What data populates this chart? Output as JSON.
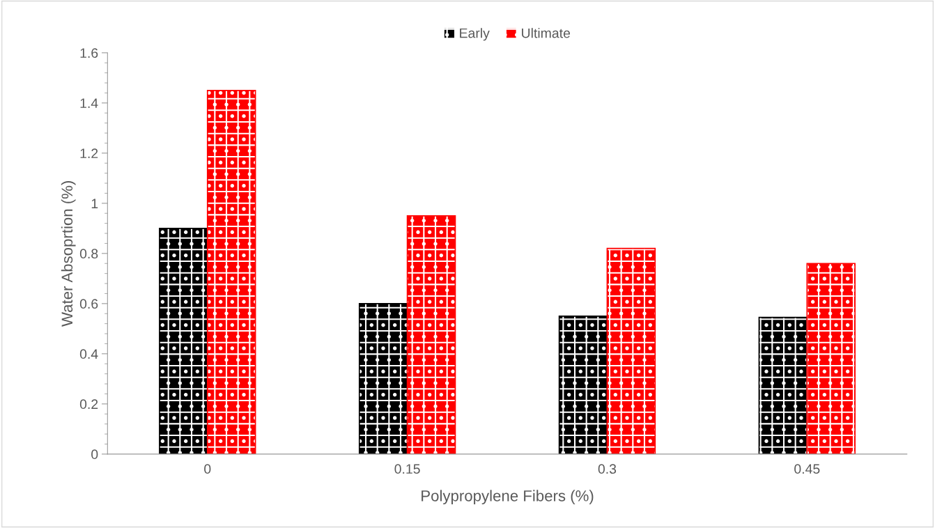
{
  "chart_data": {
    "type": "bar",
    "xlabel": "Polypropylene Fibers (%)",
    "ylabel": "Water Absoprtion (%)",
    "categories": [
      "0",
      "0.15",
      "0.3",
      "0.45"
    ],
    "series": [
      {
        "name": "Early",
        "color": "#000000",
        "values": [
          0.9,
          0.6,
          0.55,
          0.545
        ]
      },
      {
        "name": "Ultimate",
        "color": "#ff0000",
        "values": [
          1.45,
          0.95,
          0.82,
          0.76
        ]
      }
    ],
    "ylim": [
      0,
      1.6
    ],
    "yticks": [
      0,
      0.2,
      0.4,
      0.6,
      0.8,
      1,
      1.2,
      1.4,
      1.6
    ],
    "grid": false,
    "legend": "top"
  }
}
